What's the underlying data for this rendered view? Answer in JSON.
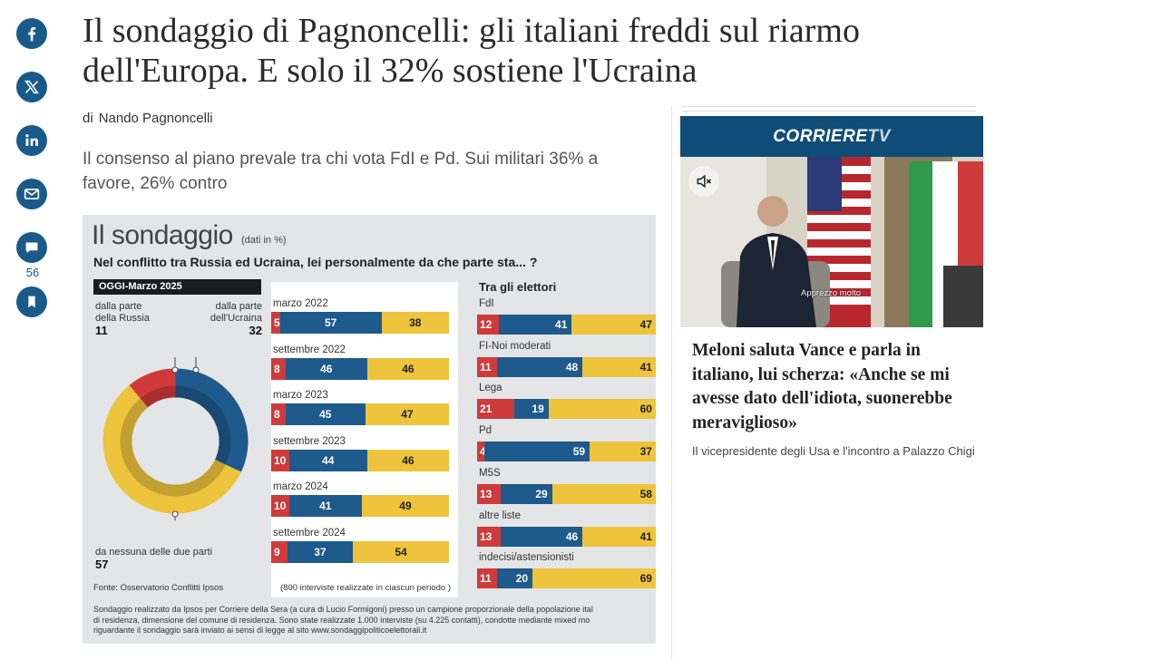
{
  "share": {
    "items": [
      {
        "name": "facebook"
      },
      {
        "name": "x"
      },
      {
        "name": "linkedin"
      },
      {
        "name": "email"
      },
      {
        "name": "comments"
      }
    ],
    "comment_count": "56",
    "bookmark": "bookmark"
  },
  "article": {
    "headline_line1": "Il sondaggio di Pagnoncelli: gli italiani freddi sul riarmo",
    "headline_line2": "dell'Europa. E solo il 32% sostiene l'Ucraina",
    "byline_prefix": "di",
    "author": "Nando Pagnoncelli",
    "summary": "Il consenso al piano prevale tra chi vota FdI e Pd. Sui militari 36% a favore, 26% contro"
  },
  "infographic": {
    "title": "Il sondaggio",
    "unit": "(dati in %)",
    "question": "Nel conflitto tra Russia ed Ucraina, lei personalmente  da che parte sta... ?",
    "today_label": "OGGI-Marzo 2025",
    "russia_label_1": "dalla parte",
    "russia_label_2": "della Russia",
    "russia_value": "11",
    "ukraine_label_1": "dalla parte",
    "ukraine_label_2": "dell'Ucraina",
    "ukraine_value": "32",
    "neither_label": "da nessuna delle due parti",
    "neither_value": "57",
    "source": "Fonte: Osservatorio Conflitti Ipsos",
    "sample_note": "(800 interviste realizzate in ciascun periodo )",
    "voters_title": "Tra gli elettori",
    "footnote_1": "Sondaggio realizzato da Ipsos per Corriere della Sera (a cura di Lucio Formigoni) presso un campione proporzionale della popolazione ital",
    "footnote_2": "di residenza, dimensione del comune di residenza. Sono state realizzate 1.000 interviste (su 4.225 contatti), condotte mediante mixed mo",
    "footnote_3": "riguardante il sondaggio sarà inviato ai sensi di legge al sito www.sondaggipoliticoelettorali.it",
    "colors": {
      "russia": "#cf3a3a",
      "ukraine": "#1e5a8c",
      "neither": "#edc43c"
    }
  },
  "chart_data": [
    {
      "type": "pie",
      "title": "OGGI-Marzo 2025",
      "categories": [
        "dalla parte della Russia",
        "dalla parte dell'Ucraina",
        "da nessuna delle due parti"
      ],
      "values": [
        11,
        32,
        57
      ]
    },
    {
      "type": "bar",
      "stacked": true,
      "orientation": "horizontal",
      "categories": [
        "marzo 2022",
        "settembre 2022",
        "marzo 2023",
        "settembre 2023",
        "marzo 2024",
        "settembre 2024"
      ],
      "series": [
        {
          "values": [
            5,
            8,
            8,
            10,
            10,
            9
          ]
        },
        {
          "values": [
            57,
            46,
            45,
            44,
            41,
            37
          ]
        },
        {
          "values": [
            38,
            46,
            47,
            46,
            49,
            54
          ]
        }
      ]
    },
    {
      "type": "bar",
      "stacked": true,
      "orientation": "horizontal",
      "title": "Tra gli elettori",
      "categories": [
        "FdI",
        "FI-Noi moderati",
        "Lega",
        "Pd",
        "M5S",
        "altre liste",
        "indecisi/astensionisti"
      ],
      "series": [
        {
          "values": [
            12,
            11,
            21,
            4,
            13,
            13,
            11
          ]
        },
        {
          "values": [
            41,
            48,
            19,
            59,
            29,
            46,
            20
          ]
        },
        {
          "values": [
            47,
            41,
            60,
            37,
            58,
            41,
            69
          ]
        }
      ]
    }
  ],
  "sidebar": {
    "logo_main": "CORRIERE",
    "logo_tv": "TV",
    "video_caption": "Apprezzo molto",
    "title": "Meloni saluta Vance e parla in italiano, lui scherza: «Anche se mi avesse dato dell'idiota, suonerebbe meraviglioso»",
    "subtitle": "Il vicepresidente degli Usa e l'incontro a Palazzo Chigi"
  }
}
